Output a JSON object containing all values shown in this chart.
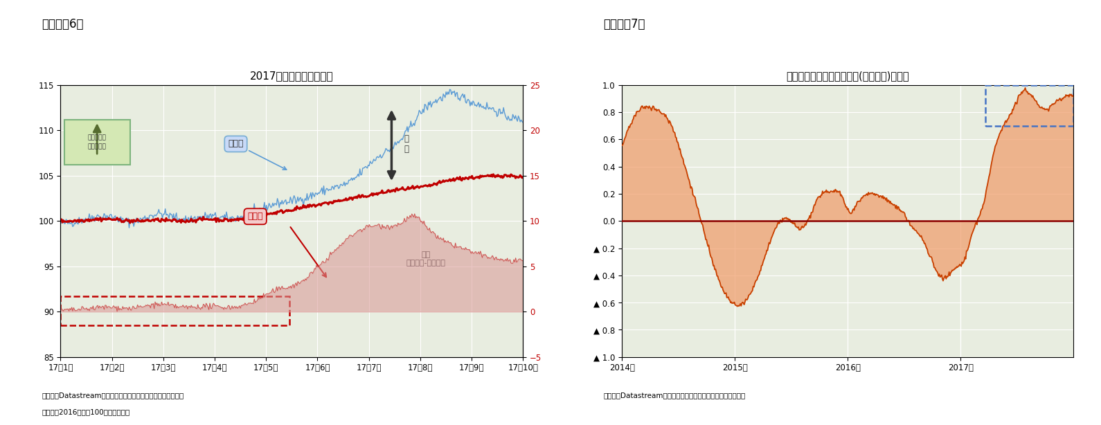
{
  "fig6_title": "2017年のユーロと人民元",
  "fig7_title": "人民元とユーロの相関係数(過去１年)の推移",
  "panel6_label": "（図表－6）",
  "panel7_label": "（図表－7）",
  "caption6_1": "（資料）Datastreamのデータを元にニッセイ基礎研究所で作成",
  "caption6_2": "（注）　2016年末＝100として指数化",
  "caption7": "（資料）Datastreamのデータを元にニッセイ基礎研究所で作成",
  "bg_color": "#e8ede0",
  "euro_line_color": "#5b9bd5",
  "rmb_line_color": "#c00000",
  "diff_fill_color": "#d99694",
  "corr_fill_color": "#f0a070",
  "corr_line_color": "#c84000",
  "zero_line_color": "#8B0000",
  "dashed_box_color": "#4472c4",
  "green_box_face": "#d4e8b4",
  "green_box_edge": "#7db47d",
  "euro_box_face": "#c9daf8",
  "euro_box_edge": "#7bafd4",
  "rmb_box_face": "#f4cccc",
  "rmb_box_edge": "#c00000",
  "yticks6_left": [
    85,
    90,
    95,
    100,
    105,
    110,
    115
  ],
  "yticks6_right": [
    -5,
    0,
    5,
    10,
    15,
    20,
    25
  ],
  "xtick_labels_6": [
    "17年1月",
    "17年2月",
    "17年3月",
    "17年4月",
    "17年5月",
    "17年6月",
    "17年7月",
    "17年8月",
    "17年9月",
    "17年10月"
  ],
  "xtick_labels_7": [
    "2014年",
    "2015年",
    "2016年",
    "2017年"
  ],
  "euro_x": [
    0,
    0.5,
    1,
    1.5,
    2,
    2.5,
    3,
    3.5,
    4,
    4.2,
    4.5,
    5,
    5.5,
    6,
    6.2,
    6.5,
    7,
    7.2,
    7.5,
    7.8,
    8,
    8.2,
    8.5,
    8.8,
    9,
    9.2,
    9.5
  ],
  "euro_y": [
    99.8,
    100.2,
    100.5,
    99.9,
    100.8,
    100.2,
    100.5,
    100.3,
    101.0,
    101.5,
    102.0,
    102.5,
    103.5,
    104.5,
    105.5,
    107.0,
    109.0,
    110.5,
    112.5,
    113.5,
    114.0,
    113.8,
    113.0,
    112.5,
    112.0,
    111.5,
    111.2
  ],
  "rmb_x": [
    0,
    0.5,
    1,
    1.5,
    2,
    2.5,
    3,
    3.5,
    4,
    4.5,
    5,
    5.5,
    6,
    6.5,
    7,
    7.5,
    8,
    8.5,
    9,
    9.5
  ],
  "rmb_y": [
    100.0,
    100.1,
    100.2,
    100.0,
    100.1,
    100.0,
    100.2,
    100.1,
    100.5,
    101.0,
    101.5,
    102.0,
    102.5,
    103.0,
    103.5,
    103.8,
    104.5,
    104.8,
    105.0,
    104.8
  ],
  "diff_x": [
    0,
    0.5,
    1,
    1.5,
    2,
    2.5,
    3,
    3.5,
    4,
    4.2,
    4.5,
    5,
    5.2,
    5.5,
    6,
    6.5,
    7,
    7.2,
    7.5,
    7.8,
    8,
    8.5,
    9,
    9.5
  ],
  "diff_y": [
    0.2,
    0.3,
    0.5,
    0.4,
    0.8,
    0.5,
    0.6,
    0.5,
    1.2,
    1.8,
    2.5,
    3.5,
    4.5,
    6.0,
    8.5,
    9.5,
    9.8,
    10.5,
    9.5,
    8.0,
    7.5,
    6.5,
    5.8,
    5.5
  ],
  "corr_x": [
    0,
    0.08,
    0.2,
    0.3,
    0.45,
    0.55,
    0.65,
    0.75,
    0.85,
    0.95,
    1.0,
    1.1,
    1.2,
    1.3,
    1.45,
    1.6,
    1.75,
    1.85,
    1.95,
    2.0,
    2.1,
    2.2,
    2.3,
    2.4,
    2.5,
    2.55,
    2.65,
    2.75,
    2.85,
    2.95,
    3.05,
    3.1,
    3.2,
    3.3,
    3.45,
    3.55,
    3.65,
    3.75,
    3.85,
    3.95,
    4.0
  ],
  "corr_y": [
    0.55,
    0.72,
    0.84,
    0.82,
    0.68,
    0.42,
    0.15,
    -0.15,
    -0.42,
    -0.58,
    -0.62,
    -0.58,
    -0.42,
    -0.18,
    0.02,
    -0.05,
    0.18,
    0.22,
    0.18,
    0.08,
    0.15,
    0.2,
    0.18,
    0.12,
    0.05,
    -0.02,
    -0.12,
    -0.3,
    -0.42,
    -0.35,
    -0.25,
    -0.1,
    0.12,
    0.52,
    0.8,
    0.95,
    0.9,
    0.82,
    0.88,
    0.92,
    0.93
  ]
}
